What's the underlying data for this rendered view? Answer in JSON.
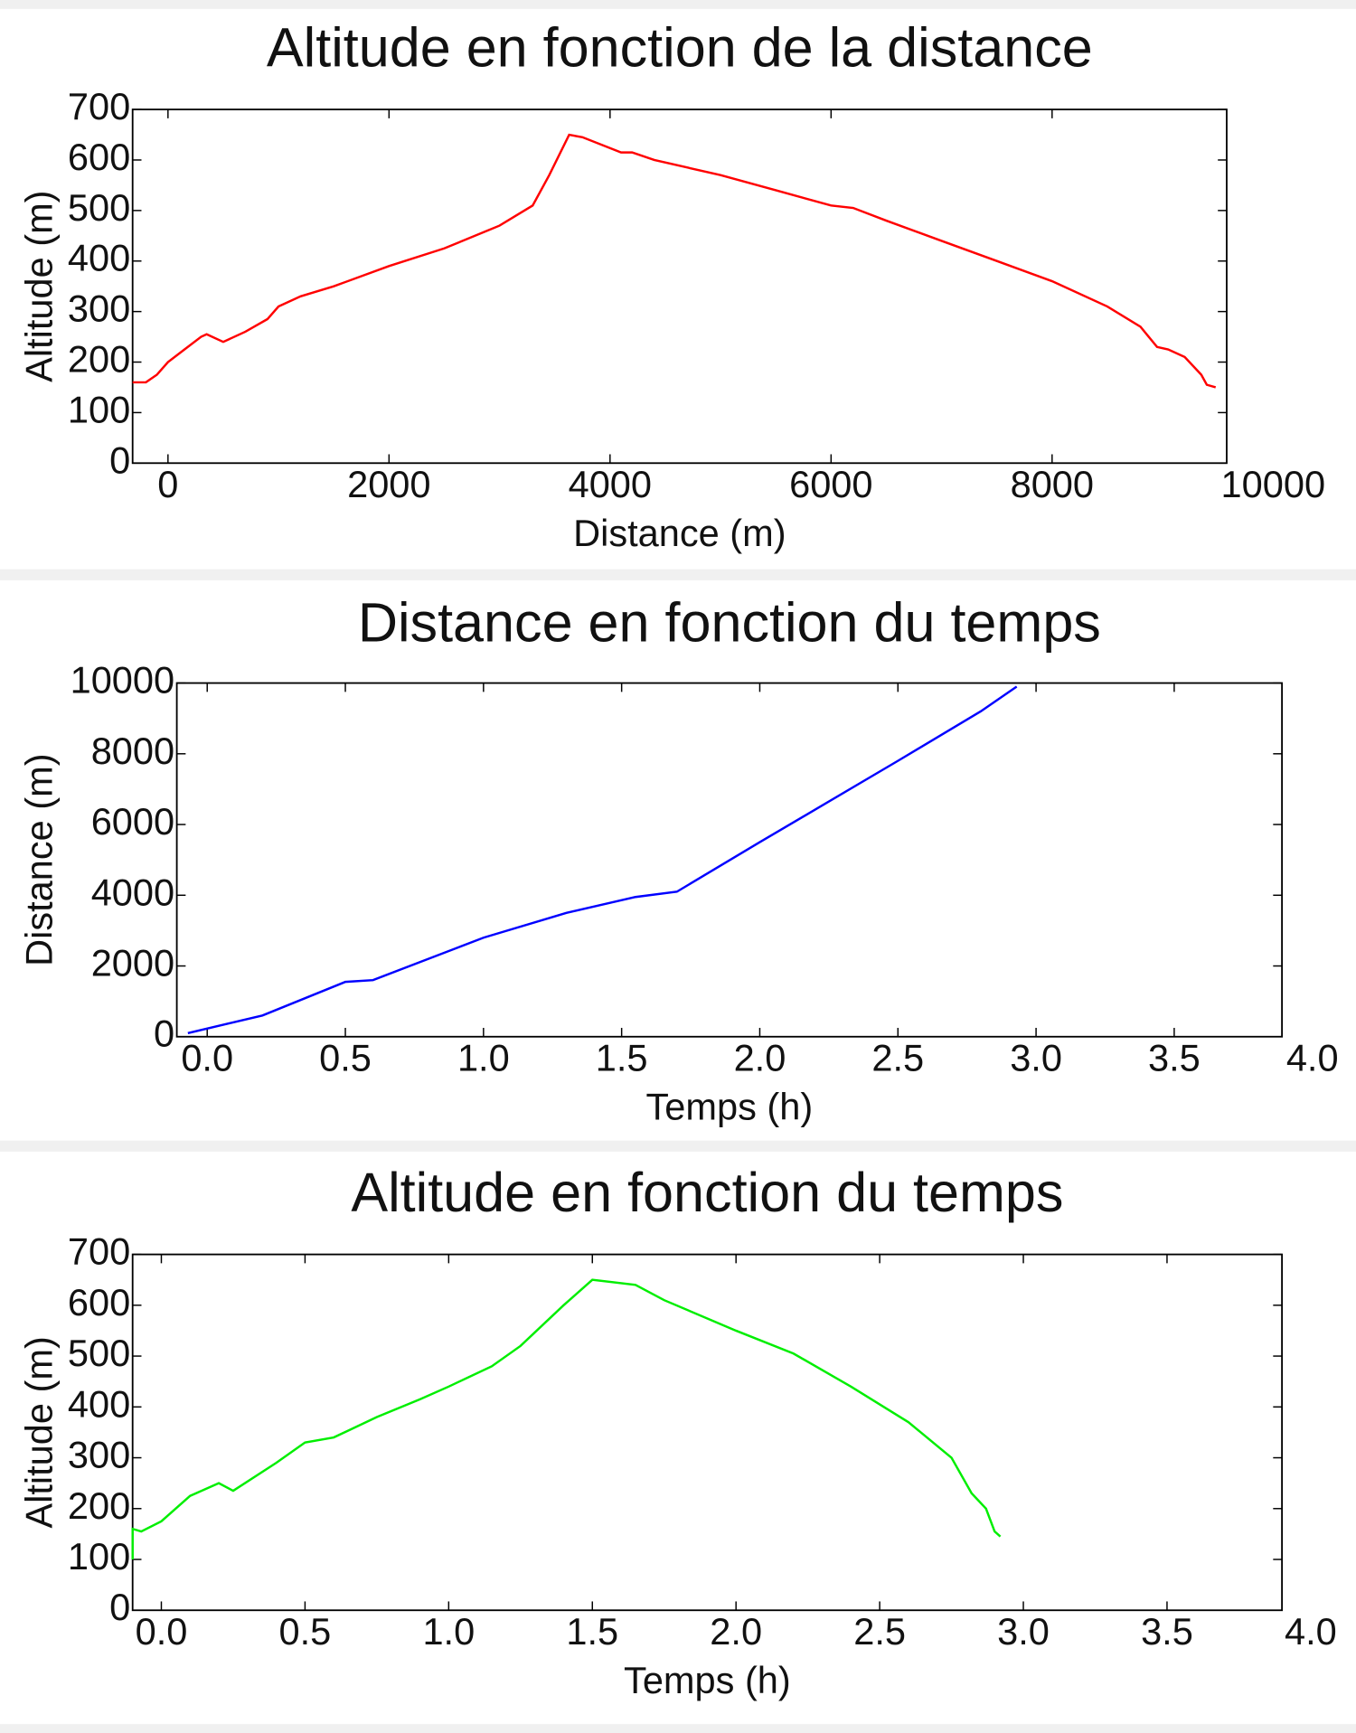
{
  "chart_data": [
    {
      "type": "line",
      "title": "Altitude en fonction de la distance",
      "x_label": "Distance (m)",
      "y_label": "Altitude (m)",
      "xlim": [
        -320,
        9580
      ],
      "ylim": [
        0,
        700
      ],
      "xticks": [
        0,
        2000,
        4000,
        6000,
        8000,
        10000
      ],
      "yticks": [
        0,
        100,
        200,
        300,
        400,
        500,
        600,
        700
      ],
      "series": [
        {
          "name": "altitude",
          "color": "#ff0000",
          "x": [
            -320,
            -200,
            -100,
            0,
            150,
            300,
            350,
            500,
            700,
            900,
            1000,
            1200,
            1500,
            2000,
            2500,
            3000,
            3300,
            3450,
            3630,
            3750,
            4100,
            4200,
            4400,
            5000,
            5500,
            6000,
            6200,
            6500,
            7000,
            7500,
            8000,
            8500,
            8800,
            8950,
            9050,
            9200,
            9350,
            9400,
            9480
          ],
          "values": [
            160,
            160,
            175,
            200,
            225,
            250,
            255,
            240,
            260,
            285,
            310,
            330,
            350,
            390,
            425,
            470,
            510,
            570,
            650,
            645,
            615,
            615,
            600,
            570,
            540,
            510,
            505,
            480,
            440,
            400,
            360,
            310,
            270,
            230,
            225,
            210,
            175,
            155,
            150
          ]
        }
      ]
    },
    {
      "type": "line",
      "title": "Distance en fonction du temps",
      "x_label": "Temps (h)",
      "y_label": "Distance (m)",
      "xlim": [
        -0.11,
        3.89
      ],
      "ylim": [
        0,
        10000
      ],
      "xticks": [
        {
          "value": 0,
          "label": "0.0"
        },
        0.5,
        {
          "value": 1,
          "label": "1.0"
        },
        1.5,
        {
          "value": 2,
          "label": "2.0"
        },
        2.5,
        {
          "value": 3,
          "label": "3.0"
        },
        3.5,
        {
          "value": 4,
          "label": "4.0"
        }
      ],
      "yticks": [
        0,
        2000,
        4000,
        6000,
        8000,
        10000
      ],
      "series": [
        {
          "name": "distance",
          "color": "#0000ff",
          "x": [
            -0.07,
            0.2,
            0.5,
            0.6,
            0.9,
            1.0,
            1.3,
            1.55,
            1.7,
            2.0,
            2.5,
            2.8,
            2.93
          ],
          "values": [
            100,
            600,
            1550,
            1600,
            2500,
            2800,
            3500,
            3950,
            4100,
            5500,
            7800,
            9200,
            9900
          ]
        }
      ]
    },
    {
      "type": "line",
      "title": "Altitude en fonction du temps",
      "x_label": "Temps (h)",
      "y_label": "Altitude (m)",
      "xlim": [
        -0.1,
        3.9
      ],
      "ylim": [
        0,
        700
      ],
      "xticks": [
        {
          "value": 0,
          "label": "0.0"
        },
        0.5,
        {
          "value": 1,
          "label": "1.0"
        },
        1.5,
        {
          "value": 2,
          "label": "2.0"
        },
        2.5,
        {
          "value": 3,
          "label": "3.0"
        },
        3.5,
        {
          "value": 4,
          "label": "4.0"
        }
      ],
      "yticks": [
        0,
        100,
        200,
        300,
        400,
        500,
        600,
        700
      ],
      "series": [
        {
          "name": "altitude",
          "color": "#00ee00",
          "x": [
            -0.1,
            -0.1,
            -0.07,
            0,
            0.1,
            0.2,
            0.25,
            0.4,
            0.5,
            0.6,
            0.75,
            0.9,
            1.0,
            1.15,
            1.25,
            1.4,
            1.5,
            1.65,
            1.75,
            2.0,
            2.2,
            2.4,
            2.6,
            2.75,
            2.82,
            2.87,
            2.9,
            2.92
          ],
          "values": [
            100,
            160,
            155,
            175,
            225,
            250,
            235,
            290,
            330,
            340,
            380,
            415,
            440,
            480,
            520,
            600,
            650,
            640,
            610,
            550,
            505,
            440,
            370,
            300,
            230,
            200,
            155,
            145
          ]
        }
      ]
    }
  ]
}
